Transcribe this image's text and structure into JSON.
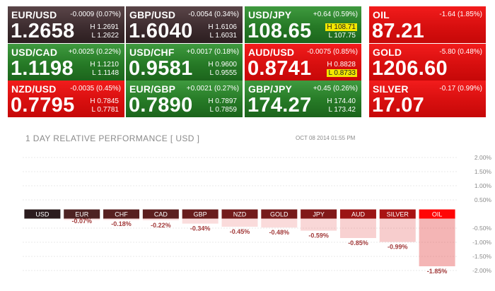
{
  "quotes": [
    {
      "name": "EUR/USD",
      "change": "-0.0009 (0.07%)",
      "price": "1.2658",
      "high": "H 1.2691",
      "low": "L 1.2622",
      "color": "#3e2d30",
      "highlight_high": false,
      "highlight_low": false
    },
    {
      "name": "GBP/USD",
      "change": "-0.0054 (0.34%)",
      "price": "1.6040",
      "high": "H 1.6106",
      "low": "L 1.6031",
      "color": "#3e2d30",
      "highlight_high": false,
      "highlight_low": false
    },
    {
      "name": "USD/JPY",
      "change": "+0.64 (0.59%)",
      "price": "108.65",
      "high": "H 108.71",
      "low": "L 107.75",
      "color": "#267a26",
      "highlight_high": true,
      "highlight_low": false
    },
    {
      "name": "OIL",
      "change": "-1.64 (1.85%)",
      "price": "87.21",
      "high": "",
      "low": "",
      "color": "#d80f0f",
      "highlight_high": false,
      "highlight_low": false
    },
    {
      "name": "USD/CAD",
      "change": "+0.0025 (0.22%)",
      "price": "1.1198",
      "high": "H 1.1210",
      "low": "L 1.1148",
      "color": "#267a26",
      "highlight_high": false,
      "highlight_low": false
    },
    {
      "name": "USD/CHF",
      "change": "+0.0017 (0.18%)",
      "price": "0.9581",
      "high": "H 0.9600",
      "low": "L 0.9555",
      "color": "#267a26",
      "highlight_high": false,
      "highlight_low": false
    },
    {
      "name": "AUD/USD",
      "change": "-0.0075 (0.85%)",
      "price": "0.8741",
      "high": "H 0.8828",
      "low": "L 0.8733",
      "color": "#d80f0f",
      "highlight_high": false,
      "highlight_low": true
    },
    {
      "name": "GOLD",
      "change": "-5.80 (0.48%)",
      "price": "1206.60",
      "high": "",
      "low": "",
      "color": "#d80f0f",
      "highlight_high": false,
      "highlight_low": false
    },
    {
      "name": "NZD/USD",
      "change": "-0.0035 (0.45%)",
      "price": "0.7795",
      "high": "H 0.7845",
      "low": "L 0.7781",
      "color": "#d80f0f",
      "highlight_high": false,
      "highlight_low": false
    },
    {
      "name": "EUR/GBP",
      "change": "+0.0021 (0.27%)",
      "price": "0.7890",
      "high": "H 0.7897",
      "low": "L 0.7859",
      "color": "#267a26",
      "highlight_high": false,
      "highlight_low": false
    },
    {
      "name": "GBP/JPY",
      "change": "+0.45 (0.26%)",
      "price": "174.27",
      "high": "H 174.40",
      "low": "L 173.42",
      "color": "#267a26",
      "highlight_high": false,
      "highlight_low": false
    },
    {
      "name": "SILVER",
      "change": "-0.17 (0.99%)",
      "price": "17.07",
      "high": "",
      "low": "",
      "color": "#d80f0f",
      "highlight_high": false,
      "highlight_low": false
    }
  ],
  "performance": {
    "title": "1 DAY RELATIVE PERFORMANCE   [ USD ]",
    "date": "OCT 08 2014 01:55 PM"
  },
  "colors": {
    "dark_tile": "#3e2d30",
    "up_tile": "#267a26",
    "down_tile": "#d80f0f",
    "highlight": "#f3e600",
    "label_text": "#a23a3a",
    "axis_text": "#8b8b8b"
  },
  "chart_data": {
    "type": "bar",
    "title": "1 DAY RELATIVE PERFORMANCE [ USD ]",
    "categories": [
      "USD",
      "EUR",
      "CHF",
      "CAD",
      "GBP",
      "NZD",
      "GOLD",
      "JPY",
      "AUD",
      "SILVER",
      "OIL"
    ],
    "values": [
      0,
      -0.07,
      -0.18,
      -0.22,
      -0.34,
      -0.45,
      -0.48,
      -0.59,
      -0.85,
      -0.99,
      -1.85
    ],
    "value_labels": [
      "",
      "-0.07%",
      "-0.18%",
      "-0.22%",
      "-0.34%",
      "-0.45%",
      "-0.48%",
      "-0.59%",
      "-0.85%",
      "-0.99%",
      "-1.85%"
    ],
    "ylim": [
      -2.0,
      2.0
    ],
    "yticks": [
      2.0,
      1.5,
      1.0,
      0.5,
      -0.5,
      -1.0,
      -1.5,
      -2.0
    ],
    "ytick_labels": [
      "2.00%",
      "1.50%",
      "1.00%",
      "0.50%",
      "-0.50%",
      "-1.00%",
      "-1.50%",
      "-2.00%"
    ],
    "grid": true,
    "xlabel": "",
    "ylabel": ""
  }
}
